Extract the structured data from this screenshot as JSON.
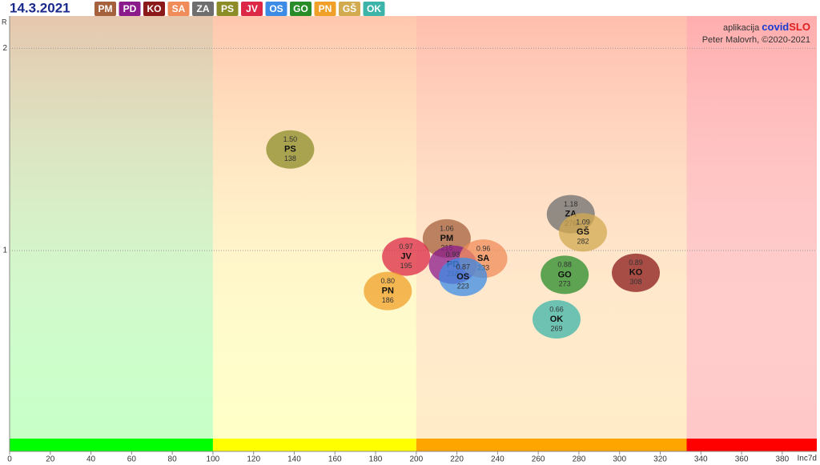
{
  "chart_data": {
    "type": "scatter",
    "title": "14.3.2021",
    "credit_app": "aplikacija",
    "credit_brand": "covid",
    "credit_brand2": "SLO",
    "credit_author": "Peter Malovrh, ©2020-2021",
    "xlabel": "Inc7d",
    "ylabel": "R",
    "xlim": [
      0,
      397
    ],
    "ylim": [
      0.07,
      2.16
    ],
    "xticks": [
      0,
      20,
      40,
      60,
      80,
      100,
      120,
      140,
      160,
      180,
      200,
      220,
      240,
      260,
      280,
      300,
      320,
      340,
      360,
      380
    ],
    "yticks": [
      1,
      2
    ],
    "zones": [
      {
        "from": 0,
        "to": 100,
        "color": "#00ff00"
      },
      {
        "from": 100,
        "to": 200,
        "color": "#ffff00"
      },
      {
        "from": 200,
        "to": 333,
        "color": "#ffa500"
      },
      {
        "from": 333,
        "to": 397,
        "color": "#ff0000"
      }
    ],
    "series": [
      {
        "name": "PM",
        "color": "#a5603c",
        "x": [
          215
        ],
        "values": [
          1.06
        ],
        "value_labels": [
          "1.06"
        ]
      },
      {
        "name": "PD",
        "color": "#8b1a8b",
        "x": [
          218
        ],
        "values": [
          0.93
        ],
        "value_labels": [
          "0.93"
        ]
      },
      {
        "name": "KO",
        "color": "#8b1a1a",
        "x": [
          308
        ],
        "values": [
          0.89
        ],
        "value_labels": [
          "0.89"
        ]
      },
      {
        "name": "SA",
        "color": "#f08c5a",
        "x": [
          233
        ],
        "values": [
          0.96
        ],
        "value_labels": [
          "0.96"
        ]
      },
      {
        "name": "ZA",
        "color": "#6e6e6e",
        "x": [
          276
        ],
        "values": [
          1.18
        ],
        "value_labels": [
          "1.18"
        ]
      },
      {
        "name": "PS",
        "color": "#8c8c28",
        "x": [
          138
        ],
        "values": [
          1.5
        ],
        "value_labels": [
          "1.50"
        ]
      },
      {
        "name": "JV",
        "color": "#dc2846",
        "x": [
          195
        ],
        "values": [
          0.97
        ],
        "value_labels": [
          "0.97"
        ]
      },
      {
        "name": "OS",
        "color": "#3c8ce6",
        "x": [
          223
        ],
        "values": [
          0.87
        ],
        "value_labels": [
          "0.87"
        ]
      },
      {
        "name": "GO",
        "color": "#288c28",
        "x": [
          273
        ],
        "values": [
          0.88
        ],
        "value_labels": [
          "0.88"
        ]
      },
      {
        "name": "PN",
        "color": "#f0a028",
        "x": [
          186
        ],
        "values": [
          0.8
        ],
        "value_labels": [
          "0.80"
        ]
      },
      {
        "name": "GŠ",
        "color": "#d2aa50",
        "x": [
          282
        ],
        "values": [
          1.09
        ],
        "value_labels": [
          "1.09"
        ]
      },
      {
        "name": "OK",
        "color": "#3cb4aa",
        "x": [
          269
        ],
        "values": [
          0.66
        ],
        "value_labels": [
          "0.66"
        ]
      }
    ]
  }
}
